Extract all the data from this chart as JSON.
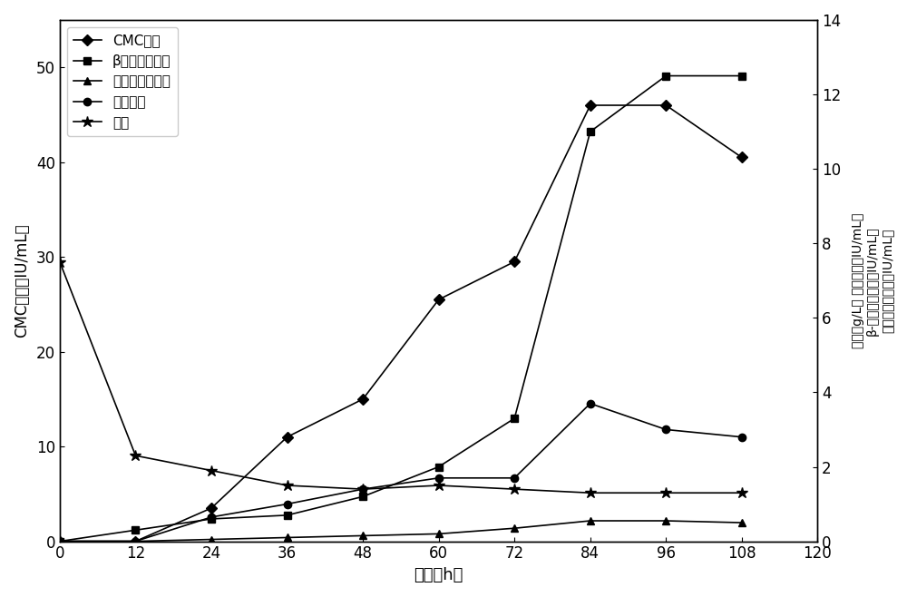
{
  "x": [
    0,
    12,
    24,
    36,
    48,
    60,
    72,
    84,
    96,
    108
  ],
  "cmc": [
    0,
    0,
    3.5,
    11,
    15,
    25.5,
    29.5,
    46,
    46,
    40.5
  ],
  "beta_right": [
    0,
    0.3,
    0.6,
    0.7,
    1.2,
    2.0,
    3.3,
    11.0,
    12.5,
    12.5
  ],
  "micro_right": [
    0,
    0,
    0.05,
    0.1,
    0.15,
    0.2,
    0.35,
    0.55,
    0.55,
    0.5
  ],
  "filter_right": [
    0,
    0,
    0.65,
    1.0,
    1.4,
    1.7,
    1.7,
    3.7,
    3.0,
    2.8
  ],
  "residual_right": [
    7.5,
    2.3,
    1.9,
    1.5,
    1.4,
    1.5,
    1.4,
    1.3,
    1.3,
    1.3
  ],
  "xlabel": "时间（h）",
  "ylabel_left": "CMC酶活（IU/mL）",
  "ylabel_right1": "残糖（g/L） 滤纸酶活（IU/mL）",
  "ylabel_right2": "β-葡萄糖苷酶活（IU/mL）",
  "ylabel_right3": "微晶纤维素酶活（IU/mL）",
  "legend_cmc": "CMC酶活",
  "legend_beta": "β葡萄糖苷酶活",
  "legend_micro": "微晶纤维素酶活",
  "legend_filter": "滤纸酶活",
  "legend_residual": "残糖",
  "xlim": [
    0,
    120
  ],
  "ylim_left": [
    0,
    55
  ],
  "ylim_right": [
    0,
    14
  ],
  "xticks": [
    0,
    12,
    24,
    36,
    48,
    60,
    72,
    84,
    96,
    108,
    120
  ],
  "yticks_left": [
    0,
    10,
    20,
    30,
    40,
    50
  ],
  "yticks_right": [
    0,
    2,
    4,
    6,
    8,
    10,
    12,
    14
  ]
}
